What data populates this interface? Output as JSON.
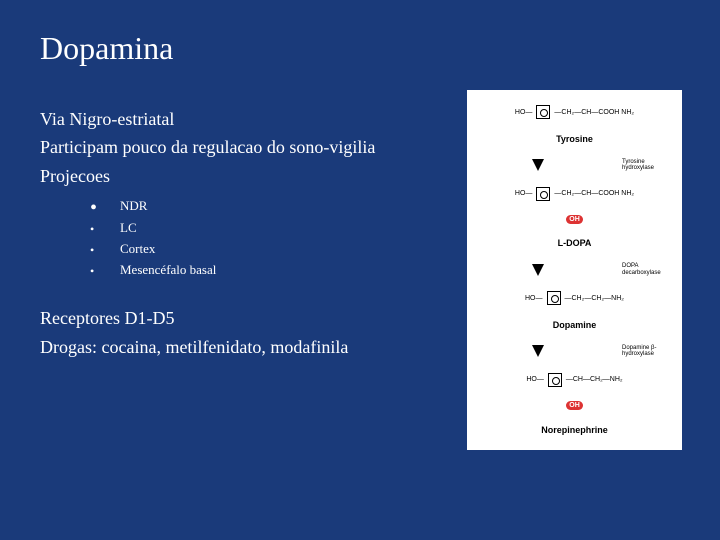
{
  "slide": {
    "title": "Dopamina",
    "line1": "Via Nigro-estriatal",
    "line2": "Participam pouco da regulacao do sono-vigilia",
    "line3": "Projecoes",
    "bullets": [
      "NDR",
      "LC",
      "Cortex",
      "Mesencéfalo basal"
    ],
    "line4": "Receptores  D1-D5",
    "line5": " Drogas: cocaina, metilfenidato,  modafinila"
  },
  "pathway": {
    "m1_left": "HO—",
    "m1_right": "—CH₂—CH—COOH\n         NH₂",
    "label1": "Tyrosine",
    "enz1": "Tyrosine\nhydroxylase",
    "m2_left": "HO—",
    "m2_right": "—CH₂—CH—COOH\n         NH₂",
    "oh": "OH",
    "label2": "L-DOPA",
    "enz2": "DOPA\ndecarboxylase",
    "m3_left": "HO—",
    "m3_right": "—CH₂—CH₂—NH₂",
    "label3": "Dopamine",
    "enz3": "Dopamine\nβ-hydroxylase",
    "m4_left": "HO—",
    "m4_right": "—CH—CH₂—NH₂",
    "label4": "Norepinephrine"
  },
  "style": {
    "background": "#1a3a7a",
    "text_color": "#ffffff",
    "title_fontsize": 32,
    "body_fontsize": 18,
    "bullet_fontsize": 13,
    "image_bg": "#ffffff"
  }
}
